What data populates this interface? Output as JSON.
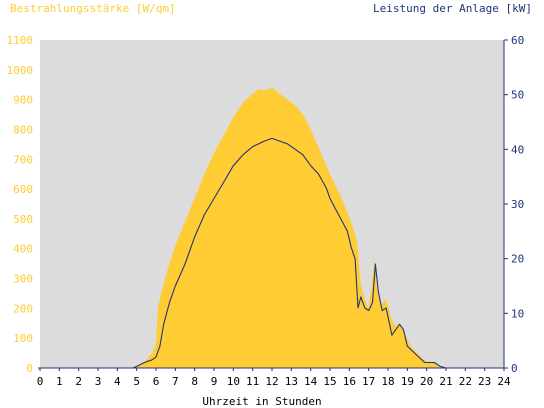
{
  "chart_data": {
    "type": "area",
    "left_axis_title": "Bestrahlungsstärke [W/qm]",
    "right_axis_title": "Leistung der Anlage [kW]",
    "xlabel": "Uhrzeit in Stunden",
    "xlim": [
      0,
      24
    ],
    "x_ticks": [
      "0",
      "1",
      "2",
      "3",
      "4",
      "5",
      "6",
      "7",
      "8",
      "9",
      "10",
      "11",
      "12",
      "13",
      "14",
      "15",
      "16",
      "17",
      "18",
      "19",
      "20",
      "21",
      "22",
      "23",
      "24"
    ],
    "y_left_lim": [
      0,
      1100
    ],
    "y_left_ticks": [
      "0",
      "100",
      "200",
      "300",
      "400",
      "500",
      "600",
      "700",
      "800",
      "900",
      "1000",
      "1100"
    ],
    "y_right_lim": [
      0,
      60
    ],
    "y_right_ticks": [
      "0",
      "10",
      "20",
      "30",
      "40",
      "50",
      "60"
    ],
    "colors": {
      "left_axis": "#ffcc33",
      "right_axis": "#223377",
      "irradiance_fill": "#ffcc33",
      "power_line": "#223377",
      "plot_bg": "#dcdcdc"
    },
    "series": [
      {
        "axis": "left",
        "style": "area",
        "x": [
          0,
          4.8,
          5.0,
          5.4,
          5.8,
          6.0,
          6.1,
          6.3,
          6.6,
          7.0,
          7.5,
          8.0,
          8.5,
          9.0,
          9.5,
          10.0,
          10.5,
          11.0,
          11.3,
          11.6,
          12.0,
          12.4,
          12.8,
          13.2,
          13.6,
          14.0,
          14.4,
          14.8,
          15.0,
          15.3,
          15.6,
          15.9,
          16.2,
          16.4,
          16.6,
          16.8,
          17.0,
          17.2,
          17.3,
          17.4,
          17.6,
          17.9,
          18.2,
          18.4,
          18.6,
          18.9,
          19.2,
          19.5,
          19.8,
          20.0,
          20.3,
          20.6,
          21.0,
          24
        ],
        "values": [
          0,
          0,
          5,
          20,
          50,
          80,
          200,
          260,
          330,
          410,
          490,
          570,
          650,
          720,
          780,
          840,
          890,
          920,
          935,
          930,
          940,
          920,
          900,
          880,
          850,
          800,
          740,
          680,
          650,
          610,
          570,
          520,
          470,
          420,
          280,
          230,
          200,
          300,
          370,
          280,
          210,
          230,
          160,
          140,
          150,
          110,
          70,
          50,
          30,
          20,
          20,
          5,
          0,
          0
        ]
      },
      {
        "axis": "right",
        "style": "line",
        "x": [
          0,
          4.8,
          5.0,
          5.4,
          5.8,
          6.0,
          6.2,
          6.4,
          6.7,
          7.0,
          7.5,
          8.0,
          8.5,
          9.0,
          9.5,
          10.0,
          10.5,
          11.0,
          11.3,
          11.6,
          12.0,
          12.4,
          12.8,
          13.2,
          13.6,
          14.0,
          14.4,
          14.8,
          15.0,
          15.3,
          15.6,
          15.9,
          16.1,
          16.3,
          16.45,
          16.6,
          16.8,
          17.0,
          17.2,
          17.35,
          17.5,
          17.7,
          17.9,
          18.2,
          18.4,
          18.6,
          18.8,
          19.0,
          19.3,
          19.6,
          19.9,
          20.1,
          20.4,
          20.7,
          21.0,
          24
        ],
        "values": [
          0,
          0,
          0.3,
          1,
          1.5,
          2,
          4,
          8,
          12,
          15,
          19,
          24,
          28,
          31,
          34,
          37,
          39,
          40.5,
          41,
          41.5,
          42,
          41.5,
          41,
          40,
          39,
          37,
          35.5,
          33,
          31,
          29,
          27,
          25,
          22,
          20,
          11,
          13,
          11,
          10.5,
          12,
          19,
          14,
          10.5,
          11,
          6,
          7,
          8,
          7,
          4,
          3,
          2,
          1,
          1,
          1,
          0.3,
          0,
          0
        ]
      }
    ]
  }
}
